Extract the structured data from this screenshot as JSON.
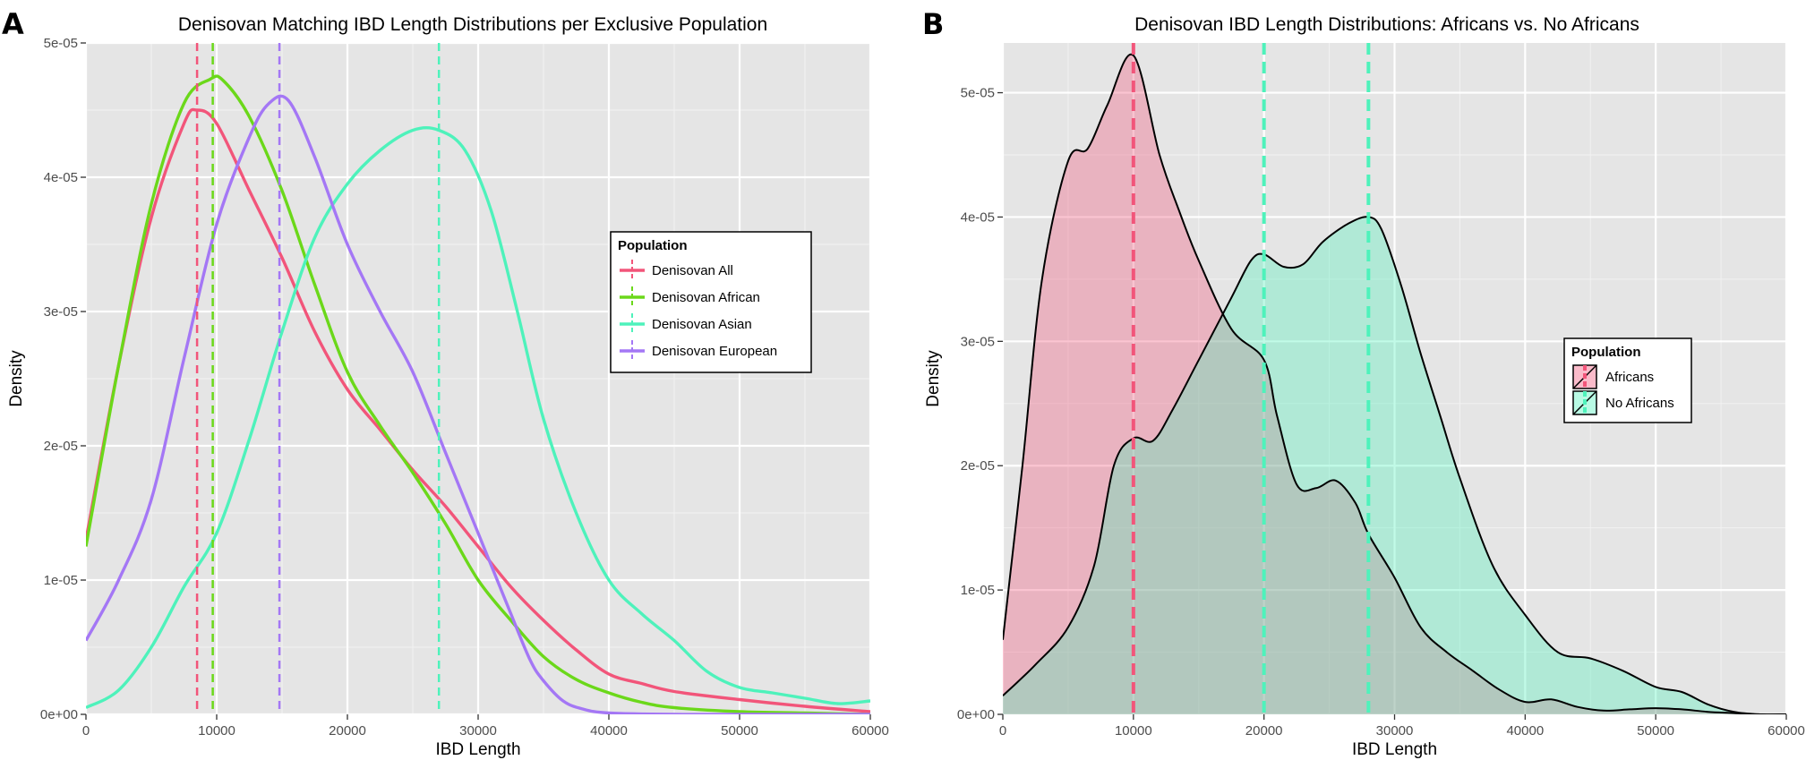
{
  "chart_data": [
    {
      "panel_label": "A",
      "type": "line",
      "title": "Denisovan Matching IBD Length Distributions per Exclusive Population",
      "xlabel": "IBD Length",
      "ylabel": "Density",
      "xlim": [
        0,
        60000
      ],
      "ylim": [
        0,
        5e-05
      ],
      "x_ticks": [
        0,
        10000,
        20000,
        30000,
        40000,
        50000,
        60000
      ],
      "x_tick_labels": [
        "0",
        "10000",
        "20000",
        "30000",
        "40000",
        "50000",
        "60000"
      ],
      "y_ticks": [
        0,
        1e-05,
        2e-05,
        3e-05,
        4e-05,
        5e-05
      ],
      "y_tick_labels": [
        "0e+00",
        "1e-05",
        "2e-05",
        "3e-05",
        "4e-05",
        "5e-05"
      ],
      "grid": true,
      "background": "#e5e5e5",
      "legend": {
        "title": "Population",
        "position": "right"
      },
      "series": [
        {
          "name": "Denisovan All",
          "color": "#f2557a",
          "vline": 8500,
          "x": [
            0,
            2500,
            5000,
            7500,
            8500,
            10000,
            12500,
            15000,
            17500,
            20000,
            22500,
            25000,
            27500,
            30000,
            32500,
            35000,
            37500,
            40000,
            42500,
            45000,
            50000,
            55000,
            60000
          ],
          "y": [
            1.3e-05,
            2.6e-05,
            3.7e-05,
            4.4e-05,
            4.5e-05,
            4.4e-05,
            3.9e-05,
            3.4e-05,
            2.85e-05,
            2.42e-05,
            2.12e-05,
            1.82e-05,
            1.55e-05,
            1.25e-05,
            9.5e-06,
            7e-06,
            4.8e-06,
            3e-06,
            2.3e-06,
            1.7e-06,
            1.1e-06,
            6e-07,
            2e-07
          ]
        },
        {
          "name": "Denisovan African",
          "color": "#6bd81a",
          "vline": 9700,
          "x": [
            0,
            2500,
            5000,
            7500,
            9500,
            10500,
            12500,
            15000,
            17500,
            20000,
            22500,
            25000,
            27500,
            30000,
            32500,
            35000,
            37500,
            40000,
            42500,
            45000,
            50000,
            55000,
            60000
          ],
          "y": [
            1.25e-05,
            2.6e-05,
            3.8e-05,
            4.55e-05,
            4.73e-05,
            4.72e-05,
            4.45e-05,
            3.9e-05,
            3.2e-05,
            2.55e-05,
            2.15e-05,
            1.8e-05,
            1.42e-05,
            1e-05,
            7e-06,
            4.3e-06,
            2.6e-06,
            1.6e-06,
            9e-07,
            5e-07,
            2e-07,
            1e-07,
            0
          ]
        },
        {
          "name": "Denisovan Asian",
          "color": "#4ef2bb",
          "vline": 27000,
          "x": [
            0,
            2500,
            5000,
            7500,
            10000,
            12500,
            15000,
            17500,
            20000,
            22500,
            25000,
            27000,
            29000,
            31000,
            33000,
            35000,
            37500,
            40000,
            42500,
            45000,
            47500,
            50000,
            52500,
            55000,
            57500,
            60000
          ],
          "y": [
            5e-07,
            1.8e-06,
            5e-06,
            9.5e-06,
            1.35e-05,
            2.05e-05,
            2.85e-05,
            3.55e-05,
            3.95e-05,
            4.2e-05,
            4.35e-05,
            4.35e-05,
            4.2e-05,
            3.75e-05,
            3e-05,
            2.2e-05,
            1.5e-05,
            1e-05,
            7.5e-06,
            5.5e-06,
            3.2e-06,
            2e-06,
            1.6e-06,
            1.2e-06,
            8e-07,
            1e-06
          ]
        },
        {
          "name": "Denisovan European",
          "color": "#a477f5",
          "vline": 14800,
          "x": [
            0,
            2500,
            5000,
            7500,
            10000,
            12500,
            14000,
            15500,
            17500,
            20000,
            22500,
            25000,
            27500,
            30000,
            32500,
            34000,
            35000,
            36500,
            38000,
            40000,
            45000,
            50000,
            55000,
            60000
          ],
          "y": [
            5.5e-06,
            1e-05,
            1.6e-05,
            2.65e-05,
            3.65e-05,
            4.3e-05,
            4.55e-05,
            4.57e-05,
            4.15e-05,
            3.5e-05,
            3e-05,
            2.55e-05,
            1.95e-05,
            1.35e-05,
            7.5e-06,
            4e-06,
            2.5e-06,
            1e-06,
            4e-07,
            1e-07,
            0,
            0,
            0,
            0
          ]
        }
      ]
    },
    {
      "panel_label": "B",
      "type": "area",
      "title": "Denisovan IBD Length Distributions: Africans vs. No Africans",
      "xlabel": "IBD Length",
      "ylabel": "Density",
      "xlim": [
        0,
        60000
      ],
      "ylim": [
        0,
        5.4e-05
      ],
      "x_ticks": [
        0,
        10000,
        20000,
        30000,
        40000,
        50000,
        60000
      ],
      "x_tick_labels": [
        "0",
        "10000",
        "20000",
        "30000",
        "40000",
        "50000",
        "60000"
      ],
      "y_ticks": [
        0,
        1e-05,
        2e-05,
        3e-05,
        4e-05,
        5e-05
      ],
      "y_tick_labels": [
        "0e+00",
        "1e-05",
        "2e-05",
        "3e-05",
        "4e-05",
        "5e-05"
      ],
      "grid": true,
      "background": "#e5e5e5",
      "legend": {
        "title": "Population",
        "position": "right"
      },
      "series": [
        {
          "name": "Africans",
          "color": "#f2557a",
          "vline": 10000,
          "x": [
            0,
            1500,
            3000,
            5000,
            6500,
            8000,
            10000,
            12000,
            13500,
            15000,
            17500,
            20000,
            21000,
            22500,
            24000,
            25500,
            27000,
            28000,
            30000,
            32000,
            34000,
            36000,
            38000,
            40000,
            42000,
            44000,
            46000,
            48000,
            50000,
            52000,
            54000,
            56000,
            58000,
            60000
          ],
          "y": [
            6e-06,
            2e-05,
            3.5e-05,
            4.45e-05,
            4.55e-05,
            4.9e-05,
            5.3e-05,
            4.5e-05,
            4.05e-05,
            3.65e-05,
            3.1e-05,
            2.85e-05,
            2.4e-05,
            1.85e-05,
            1.82e-05,
            1.88e-05,
            1.7e-05,
            1.45e-05,
            1.1e-05,
            7e-06,
            5e-06,
            3.5e-06,
            2e-06,
            1e-06,
            1.2e-06,
            6e-07,
            3e-07,
            4e-07,
            5e-07,
            4e-07,
            2e-07,
            1e-07,
            0,
            0
          ]
        },
        {
          "name": "No Africans",
          "color": "#4ef2bb",
          "vline": 20000,
          "vline2": 28000,
          "x": [
            0,
            2500,
            5000,
            7000,
            8500,
            10000,
            11500,
            13000,
            15000,
            17500,
            19000,
            20000,
            21500,
            23000,
            24500,
            26500,
            28000,
            29000,
            30500,
            32000,
            33500,
            35000,
            37500,
            40000,
            42500,
            45000,
            47500,
            50000,
            52000,
            54000,
            56000,
            58000,
            60000
          ],
          "y": [
            1.5e-06,
            4e-06,
            7e-06,
            1.2e-05,
            2e-05,
            2.22e-05,
            2.2e-05,
            2.45e-05,
            2.85e-05,
            3.35e-05,
            3.65e-05,
            3.7e-05,
            3.6e-05,
            3.62e-05,
            3.8e-05,
            3.95e-05,
            4e-05,
            3.9e-05,
            3.45e-05,
            2.9e-05,
            2.4e-05,
            1.9e-05,
            1.2e-05,
            8e-06,
            5e-06,
            4.5e-06,
            3.5e-06,
            2.2e-06,
            1.8e-06,
            8e-07,
            2e-07,
            0,
            0
          ]
        }
      ]
    }
  ]
}
